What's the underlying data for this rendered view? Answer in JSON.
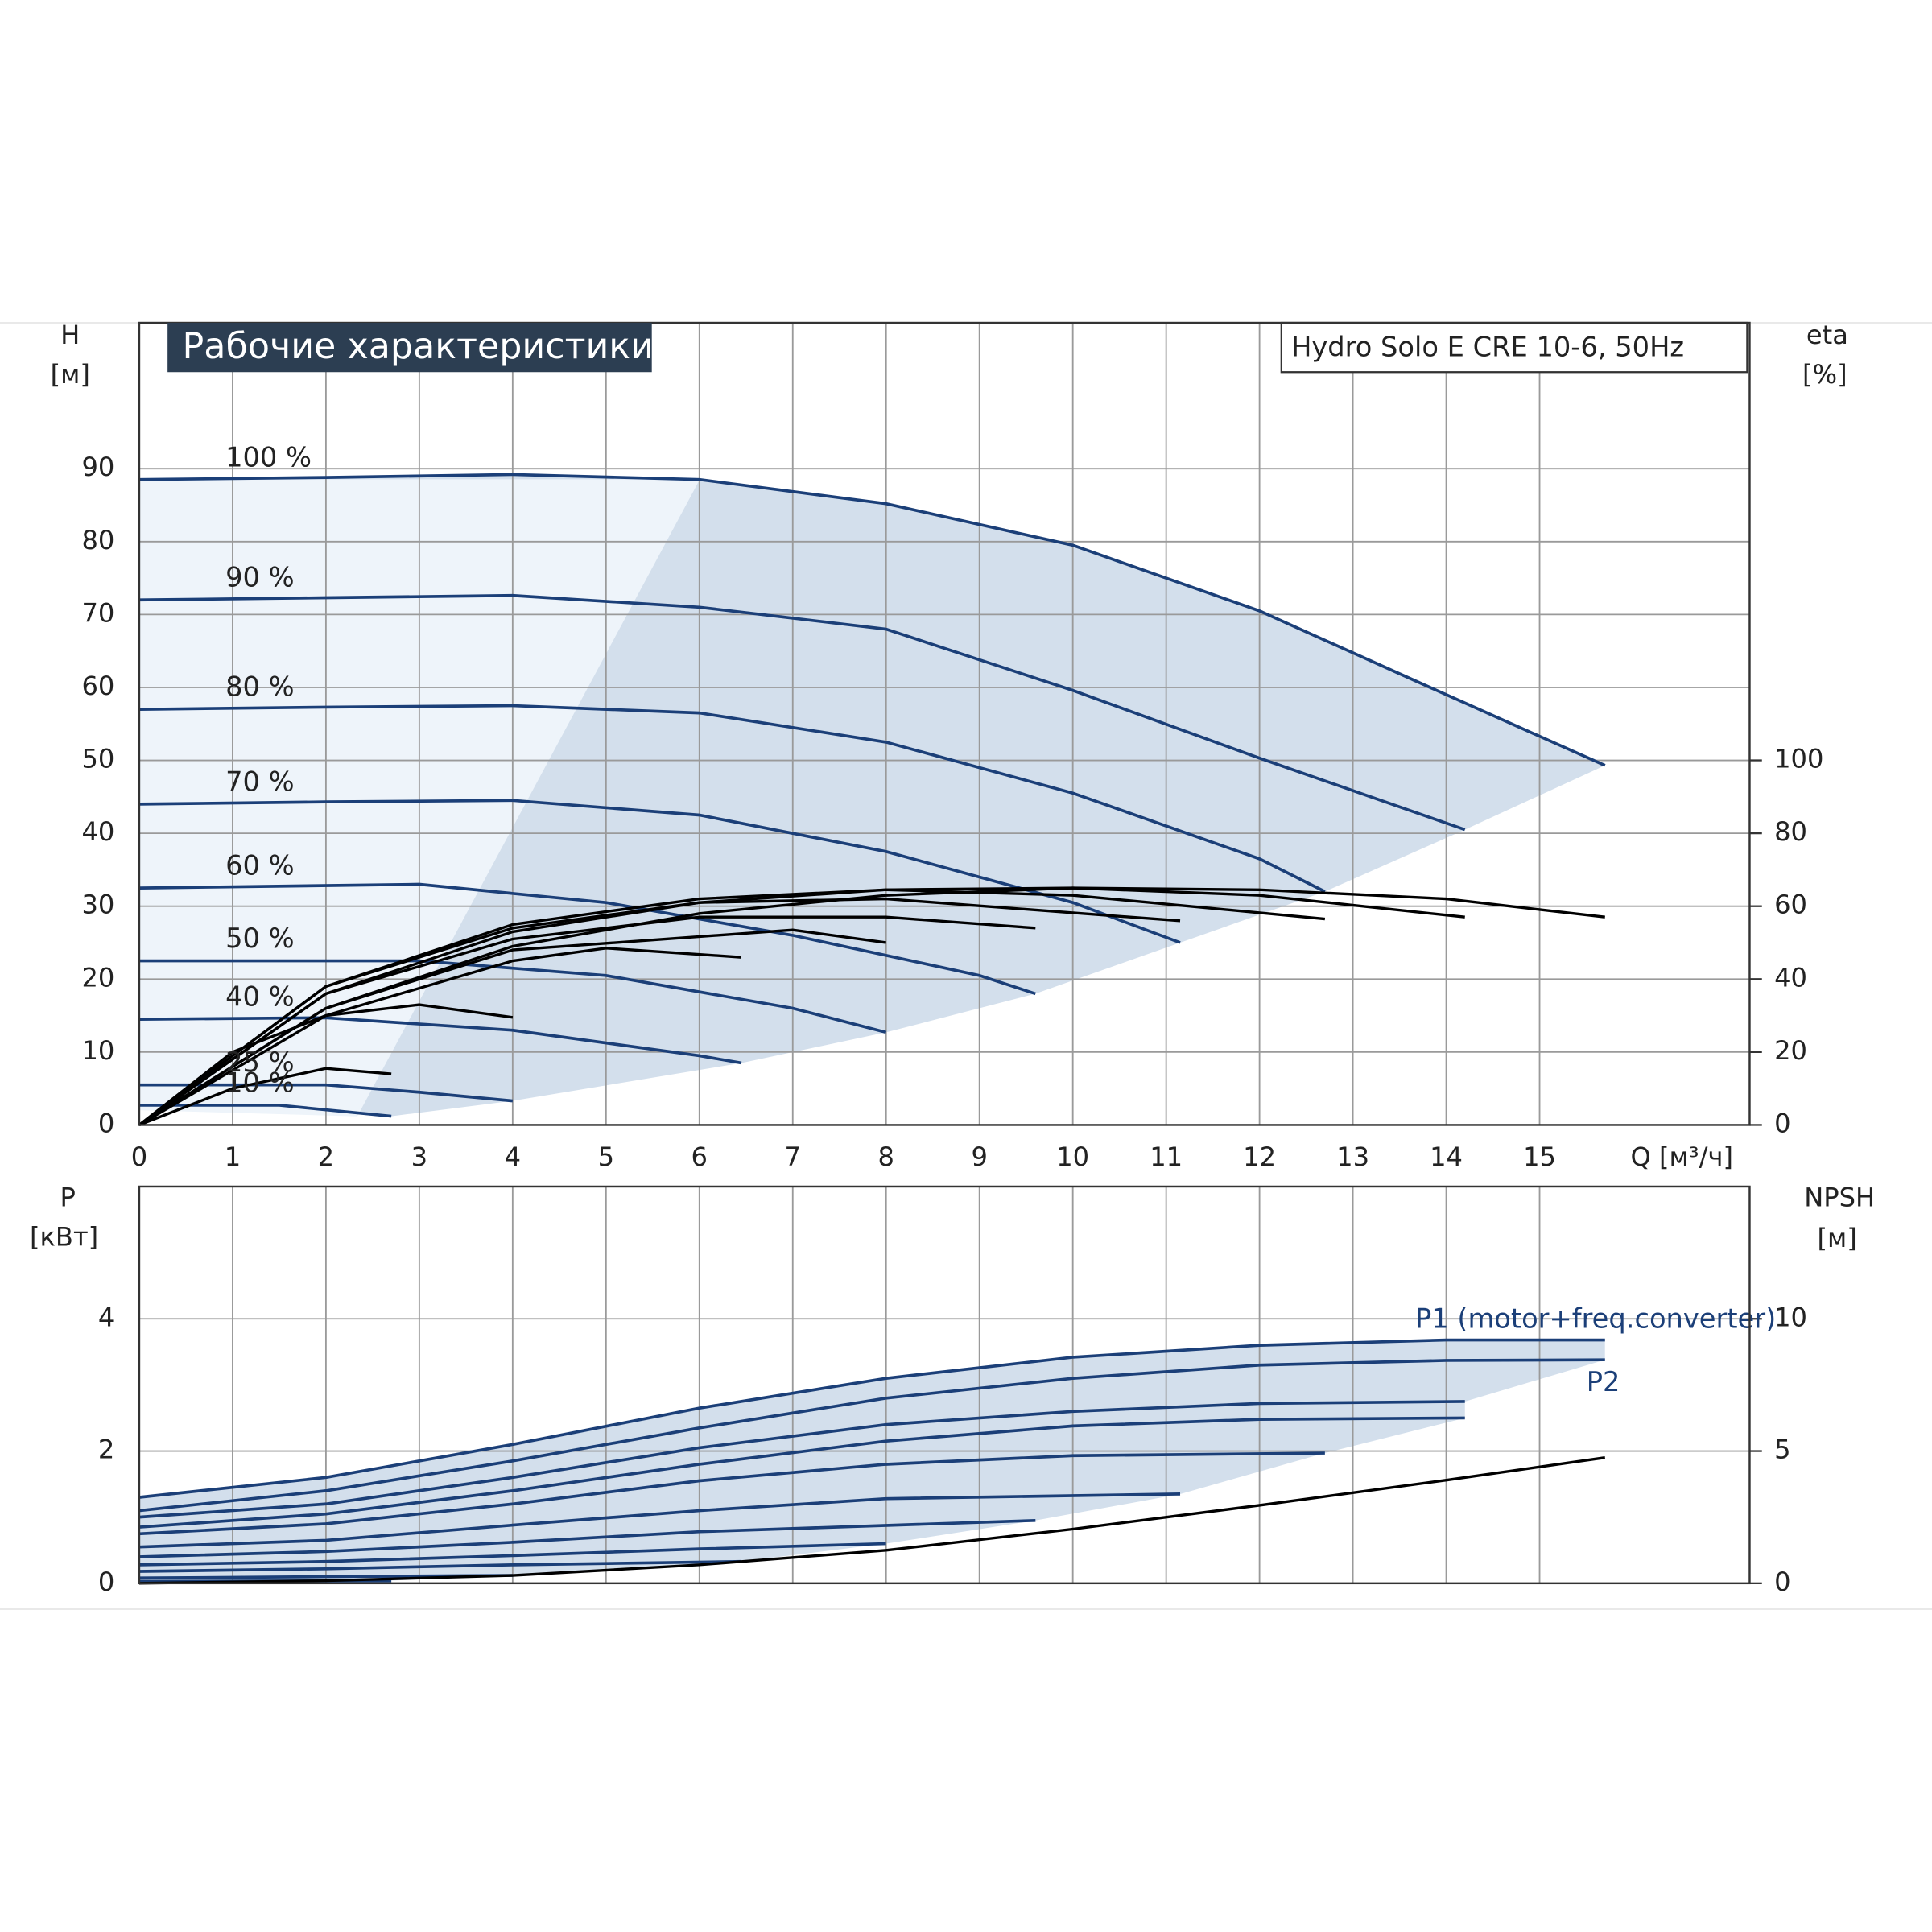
{
  "chart_data": [
    {
      "type": "line",
      "title": "Рабочие характеристики",
      "subtitle": "Hydro Solo E CRE 10-6, 50Hz",
      "xlabel": "Q [м³/ч]",
      "ylabel": [
        "H",
        "[м]"
      ],
      "y2label": [
        "eta",
        "[%]"
      ],
      "xlim": [
        0,
        17.25
      ],
      "xticks": [
        0,
        1,
        2,
        3,
        4,
        5,
        6,
        7,
        8,
        9,
        10,
        11,
        12,
        13,
        14,
        15
      ],
      "ylim": [
        0,
        110
      ],
      "yticks": [
        0,
        10,
        20,
        30,
        40,
        50,
        60,
        70,
        80,
        90
      ],
      "y2lim": [
        0,
        220
      ],
      "y2ticks": [
        0,
        20,
        40,
        60,
        80,
        100
      ],
      "grid": true,
      "region_color": "#d3dfec",
      "series": [
        {
          "name": "100 %",
          "color": "#1b3f78",
          "x": [
            0,
            2,
            4,
            6,
            8,
            10,
            12,
            14,
            15.7
          ],
          "values": [
            88.5,
            88.8,
            89.2,
            88.5,
            85.2,
            79.5,
            70.5,
            59,
            49.3
          ]
        },
        {
          "name": "90 %",
          "color": "#1b3f78",
          "x": [
            0,
            2,
            4,
            6,
            8,
            10,
            12,
            14.2
          ],
          "values": [
            72,
            72.3,
            72.6,
            71,
            68,
            59.6,
            50.3,
            40.5
          ]
        },
        {
          "name": "80 %",
          "color": "#1b3f78",
          "x": [
            0,
            2,
            4,
            6,
            8,
            10,
            12,
            12.7
          ],
          "values": [
            57,
            57.3,
            57.5,
            56.5,
            52.5,
            45.5,
            36.5,
            32
          ]
        },
        {
          "name": "70 %",
          "color": "#1b3f78",
          "x": [
            0,
            2,
            4,
            6,
            8,
            10,
            11.15
          ],
          "values": [
            44,
            44.3,
            44.5,
            42.5,
            37.5,
            30.5,
            25
          ]
        },
        {
          "name": "60 %",
          "color": "#1b3f78",
          "x": [
            0,
            3,
            5,
            7,
            9,
            9.6
          ],
          "values": [
            32.5,
            33,
            30.5,
            26,
            20.5,
            18
          ]
        },
        {
          "name": "50 %",
          "color": "#1b3f78",
          "x": [
            0,
            3,
            5,
            7,
            8
          ],
          "values": [
            22.5,
            22.5,
            20.5,
            16,
            12.7
          ]
        },
        {
          "name": "40 %",
          "color": "#1b3f78",
          "x": [
            0,
            2,
            4,
            6,
            6.45
          ],
          "values": [
            14.5,
            14.7,
            13,
            9.5,
            8.5
          ]
        },
        {
          "name": "25 %",
          "color": "#1b3f78",
          "x": [
            0,
            2,
            3,
            4
          ],
          "values": [
            5.5,
            5.5,
            4.5,
            3.3
          ]
        },
        {
          "name": "10 %",
          "color": "#1b3f78",
          "x": [
            0,
            1.5,
            2.7
          ],
          "values": [
            2.7,
            2.7,
            1.2
          ]
        },
        {
          "color": "#000000",
          "axis": "y2",
          "x": [
            0,
            2,
            4,
            6,
            8,
            10,
            12,
            14,
            15.7
          ],
          "values": [
            0,
            32,
            49,
            58,
            63,
            65,
            64.5,
            62,
            57
          ]
        },
        {
          "color": "#000000",
          "axis": "y2",
          "x": [
            0,
            2,
            4,
            6,
            8,
            10,
            12,
            14.2
          ],
          "values": [
            0,
            36,
            53,
            61,
            64.5,
            65,
            63,
            57
          ]
        },
        {
          "color": "#000000",
          "axis": "y2",
          "x": [
            0,
            2,
            4,
            6,
            8,
            10,
            12.7
          ],
          "values": [
            0,
            38,
            55,
            62,
            64.5,
            63,
            56.5
          ]
        },
        {
          "color": "#000000",
          "axis": "y2",
          "x": [
            0,
            2,
            4,
            6,
            8,
            11.15
          ],
          "values": [
            0,
            38,
            54,
            61,
            62,
            56
          ]
        },
        {
          "color": "#000000",
          "axis": "y2",
          "x": [
            0,
            2,
            4,
            6,
            8,
            9.6
          ],
          "values": [
            0,
            36,
            51,
            57,
            57,
            54
          ]
        },
        {
          "color": "#000000",
          "axis": "y2",
          "x": [
            0,
            2,
            4,
            7,
            8
          ],
          "values": [
            0,
            32,
            48,
            53.5,
            50
          ]
        },
        {
          "color": "#000000",
          "axis": "y2",
          "x": [
            0,
            2,
            4,
            5,
            6.45
          ],
          "values": [
            0,
            30,
            45,
            48.5,
            46
          ]
        },
        {
          "color": "#000000",
          "axis": "y2",
          "x": [
            0,
            1,
            2,
            3,
            4
          ],
          "values": [
            0,
            20,
            30,
            33,
            29.5
          ]
        },
        {
          "color": "#000000",
          "axis": "y2",
          "x": [
            0,
            1,
            2,
            2.7
          ],
          "values": [
            0,
            10,
            15.5,
            14
          ]
        }
      ]
    },
    {
      "type": "line",
      "ylabel": [
        "P",
        "[кВт]"
      ],
      "y2label": [
        "NPSH",
        "[м]"
      ],
      "ylim": [
        0,
        6
      ],
      "yticks": [
        0,
        2,
        4
      ],
      "y2lim": [
        0,
        15
      ],
      "y2ticks": [
        0,
        5,
        10
      ],
      "grid": true,
      "region_color": "#d3dfec",
      "series": [
        {
          "name": "P1 (motor+freq.converter)",
          "color": "#1b3f78",
          "x": [
            0,
            2,
            4,
            6,
            8,
            10,
            12,
            14,
            15.7
          ],
          "values": [
            1.3,
            1.6,
            2.1,
            2.65,
            3.1,
            3.42,
            3.6,
            3.68,
            3.68
          ]
        },
        {
          "name": "P2",
          "color": "#1b3f78",
          "x": [
            0,
            2,
            4,
            6,
            8,
            10,
            12,
            14,
            15.7
          ],
          "values": [
            1.1,
            1.4,
            1.85,
            2.35,
            2.8,
            3.1,
            3.3,
            3.37,
            3.38
          ]
        },
        {
          "color": "#1b3f78",
          "x": [
            0,
            2,
            4,
            6,
            8,
            10,
            12,
            14.2
          ],
          "values": [
            1.0,
            1.2,
            1.6,
            2.05,
            2.4,
            2.6,
            2.72,
            2.75
          ]
        },
        {
          "color": "#1b3f78",
          "x": [
            0,
            2,
            4,
            6,
            8,
            10,
            12,
            14.2
          ],
          "values": [
            0.85,
            1.05,
            1.4,
            1.8,
            2.15,
            2.38,
            2.48,
            2.5
          ]
        },
        {
          "color": "#1b3f78",
          "x": [
            0,
            2,
            4,
            6,
            8,
            10,
            12.7
          ],
          "values": [
            0.75,
            0.9,
            1.2,
            1.55,
            1.8,
            1.93,
            1.97
          ]
        },
        {
          "color": "#1b3f78",
          "x": [
            0,
            2,
            4,
            6,
            8,
            11.15
          ],
          "values": [
            0.55,
            0.65,
            0.88,
            1.1,
            1.28,
            1.35
          ]
        },
        {
          "color": "#1b3f78",
          "x": [
            0,
            2,
            4,
            6,
            9.6
          ],
          "values": [
            0.4,
            0.48,
            0.62,
            0.78,
            0.95
          ]
        },
        {
          "color": "#1b3f78",
          "x": [
            0,
            2,
            4,
            6,
            8
          ],
          "values": [
            0.28,
            0.33,
            0.42,
            0.52,
            0.6
          ]
        },
        {
          "color": "#1b3f78",
          "x": [
            0,
            2,
            4,
            6.45
          ],
          "values": [
            0.18,
            0.22,
            0.28,
            0.33
          ]
        },
        {
          "color": "#1b3f78",
          "x": [
            0,
            2,
            4
          ],
          "values": [
            0.08,
            0.1,
            0.12
          ]
        },
        {
          "color": "#1b3f78",
          "x": [
            0,
            1.5,
            2.7
          ],
          "values": [
            0.03,
            0.035,
            0.04
          ]
        },
        {
          "color": "#000000",
          "axis": "y2",
          "x": [
            0,
            2,
            4,
            6,
            8,
            10,
            12,
            14,
            15.7
          ],
          "values": [
            0,
            0.1,
            0.3,
            0.7,
            1.25,
            2.05,
            2.95,
            3.9,
            4.75
          ]
        }
      ]
    }
  ]
}
